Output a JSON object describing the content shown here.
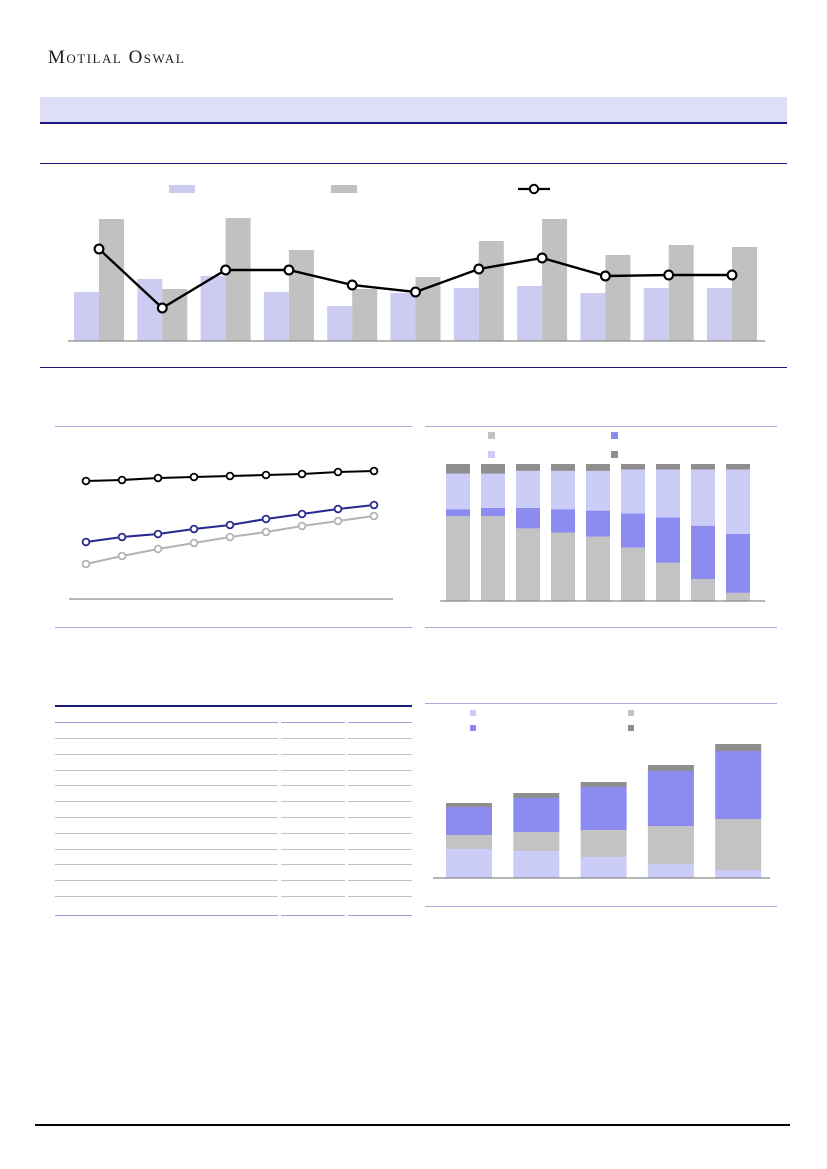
{
  "page": {
    "logo_text": "Motilal Oswal",
    "visible_text_note": "All body text on this report page is not rendered (blank); only the logo wordmark, rules, banner and chart graphics are visible."
  },
  "colors": {
    "banner_bg": "#dedef8",
    "navy": "#18187d",
    "section_border": "#aaaadd",
    "bar_lavender": "#ccccf2",
    "bar_gray": "#c1c1c1",
    "line_black": "#000000",
    "line_navy": "#28288e",
    "line_gray": "#b3b3b3",
    "seg_gray": "#c3c3c3",
    "seg_purple": "#8b8bf0",
    "seg_lavender": "#ccccf8",
    "seg_darkgray": "#8f8f8f",
    "axis_gray": "#8a8a8a",
    "table_line_gray": "#c2c2c2",
    "table_line_purple": "#9f9fd8",
    "table_line_navy": "#1a1a78",
    "footer_line": "#000000"
  },
  "chart_data": [
    {
      "id": "top-combo-chart",
      "type": "bar",
      "subtype": "grouped-bars-with-line-overlay",
      "title": "",
      "labels_visible": false,
      "categories": [
        "",
        "",
        "",
        "",
        "",
        "",
        "",
        "",
        "",
        "",
        ""
      ],
      "value_unit": "relative (no axis tick labels are rendered in the source)",
      "series": [
        {
          "name": "lavender-bars",
          "kind": "bar",
          "color_key": "bar_lavender",
          "values": [
            49,
            62,
            65,
            49,
            35,
            48,
            53,
            55,
            48,
            53,
            53
          ]
        },
        {
          "name": "gray-bars",
          "kind": "bar",
          "color_key": "bar_gray",
          "values": [
            122,
            52,
            123,
            91,
            52,
            64,
            100,
            122,
            86,
            96,
            94
          ]
        },
        {
          "name": "black-marker-line",
          "kind": "line",
          "color_key": "line_black",
          "values": [
            92,
            33,
            71,
            71,
            56,
            49,
            72,
            83,
            65,
            66,
            66
          ]
        }
      ],
      "legend": {
        "position": "top",
        "entries": [
          "",
          "",
          ""
        ]
      }
    },
    {
      "id": "middle-left-line-chart",
      "type": "line",
      "title": "",
      "labels_visible": false,
      "x": [
        1,
        2,
        3,
        4,
        5,
        6,
        7,
        8,
        9
      ],
      "value_unit": "relative (no axis tick labels are rendered in the source)",
      "series": [
        {
          "name": "black-line",
          "color_key": "line_black",
          "values": [
            118,
            119,
            121,
            122,
            123,
            124,
            125,
            127,
            128
          ]
        },
        {
          "name": "navy-line",
          "color_key": "line_navy",
          "values": [
            57,
            62,
            65,
            70,
            74,
            80,
            85,
            90,
            94
          ]
        },
        {
          "name": "gray-line",
          "color_key": "line_gray",
          "values": [
            35,
            43,
            50,
            56,
            62,
            67,
            73,
            78,
            83
          ]
        }
      ],
      "legend": {
        "position": "none",
        "entries": []
      }
    },
    {
      "id": "middle-right-stacked-100-chart",
      "type": "bar",
      "subtype": "stacked-100-percent",
      "title": "",
      "labels_visible": false,
      "categories": [
        "",
        "",
        "",
        "",
        "",
        "",
        "",
        "",
        ""
      ],
      "value_unit": "percent of column",
      "series": [
        {
          "name": "gray-segment",
          "color_key": "seg_gray",
          "values": [
            62,
            62,
            53,
            50,
            47,
            39,
            28,
            16,
            6
          ]
        },
        {
          "name": "purple-segment",
          "color_key": "seg_purple",
          "values": [
            5,
            6,
            15,
            17,
            19,
            25,
            33,
            39,
            43
          ]
        },
        {
          "name": "lavender-segment",
          "color_key": "seg_lavender",
          "values": [
            26,
            25,
            27,
            28,
            29,
            32,
            35,
            41,
            47
          ]
        },
        {
          "name": "darkgray-cap-segment",
          "color_key": "seg_darkgray",
          "values": [
            7,
            7,
            5,
            5,
            5,
            4,
            4,
            4,
            4
          ]
        }
      ],
      "legend": {
        "position": "top",
        "entries": [
          "",
          "",
          "",
          ""
        ],
        "swatch_color_keys": [
          "seg_gray",
          "seg_purple",
          "seg_lavender",
          "seg_darkgray"
        ]
      }
    },
    {
      "id": "bottom-right-stacked-chart",
      "type": "bar",
      "subtype": "stacked-growing",
      "title": "",
      "labels_visible": false,
      "categories": [
        "",
        "",
        "",
        "",
        ""
      ],
      "value_unit": "relative (no axis tick labels are rendered in the source)",
      "series": [
        {
          "name": "lavender-segment",
          "color_key": "seg_lavender",
          "values": [
            29,
            27,
            21,
            14,
            8
          ]
        },
        {
          "name": "gray-segment",
          "color_key": "seg_gray",
          "values": [
            14,
            19,
            27,
            38,
            51
          ]
        },
        {
          "name": "purple-segment",
          "color_key": "seg_purple",
          "values": [
            28,
            34,
            43,
            55,
            68
          ]
        },
        {
          "name": "darkgray-cap-segment",
          "color_key": "seg_darkgray",
          "values": [
            4,
            5,
            5,
            6,
            7
          ]
        }
      ],
      "legend": {
        "position": "top",
        "entries": [
          "",
          "",
          "",
          ""
        ],
        "swatch_color_keys": [
          "seg_lavender",
          "seg_gray",
          "seg_purple",
          "seg_darkgray"
        ]
      }
    }
  ],
  "table": {
    "id": "bottom-left-table-skeleton",
    "visible_text": "",
    "row_lines": 11,
    "column_breaks": 2
  }
}
